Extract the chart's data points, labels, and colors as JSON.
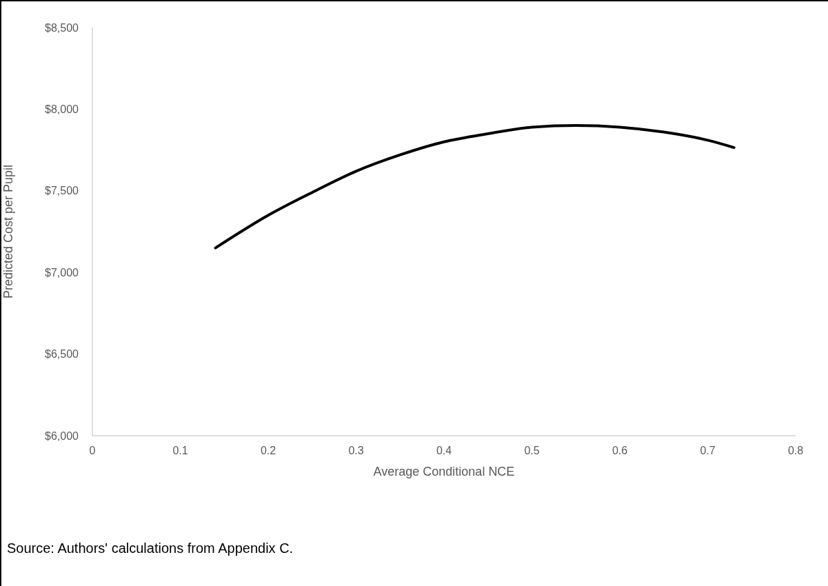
{
  "chart_data": {
    "type": "line",
    "xlabel": "Average Conditional NCE",
    "ylabel": "Predicted Cost per Pupil",
    "annotations": [
      "Source: Authors' calculations from Appendix C."
    ],
    "x": [
      0.14,
      0.2,
      0.25,
      0.3,
      0.35,
      0.4,
      0.45,
      0.5,
      0.55,
      0.6,
      0.65,
      0.7,
      0.73
    ],
    "series": [
      {
        "color": "#000000",
        "values": [
          7150,
          7350,
          7490,
          7620,
          7720,
          7800,
          7850,
          7890,
          7900,
          7890,
          7860,
          7810,
          7765
        ]
      }
    ],
    "xlim": [
      0,
      0.8
    ],
    "xticks": [
      0,
      0.1,
      0.2,
      0.3,
      0.4,
      0.5,
      0.6,
      0.7,
      0.8
    ],
    "ylim": [
      6000,
      8500
    ],
    "yticks": [
      {
        "value": 6000,
        "label": "$6,000"
      },
      {
        "value": 6500,
        "label": "$6,500"
      },
      {
        "value": 7000,
        "label": "$7,000"
      },
      {
        "value": 7500,
        "label": "$7,500"
      },
      {
        "value": 8000,
        "label": "$8,000"
      },
      {
        "value": 8500,
        "label": "$8,500"
      }
    ],
    "marker": "none",
    "grid": false
  }
}
